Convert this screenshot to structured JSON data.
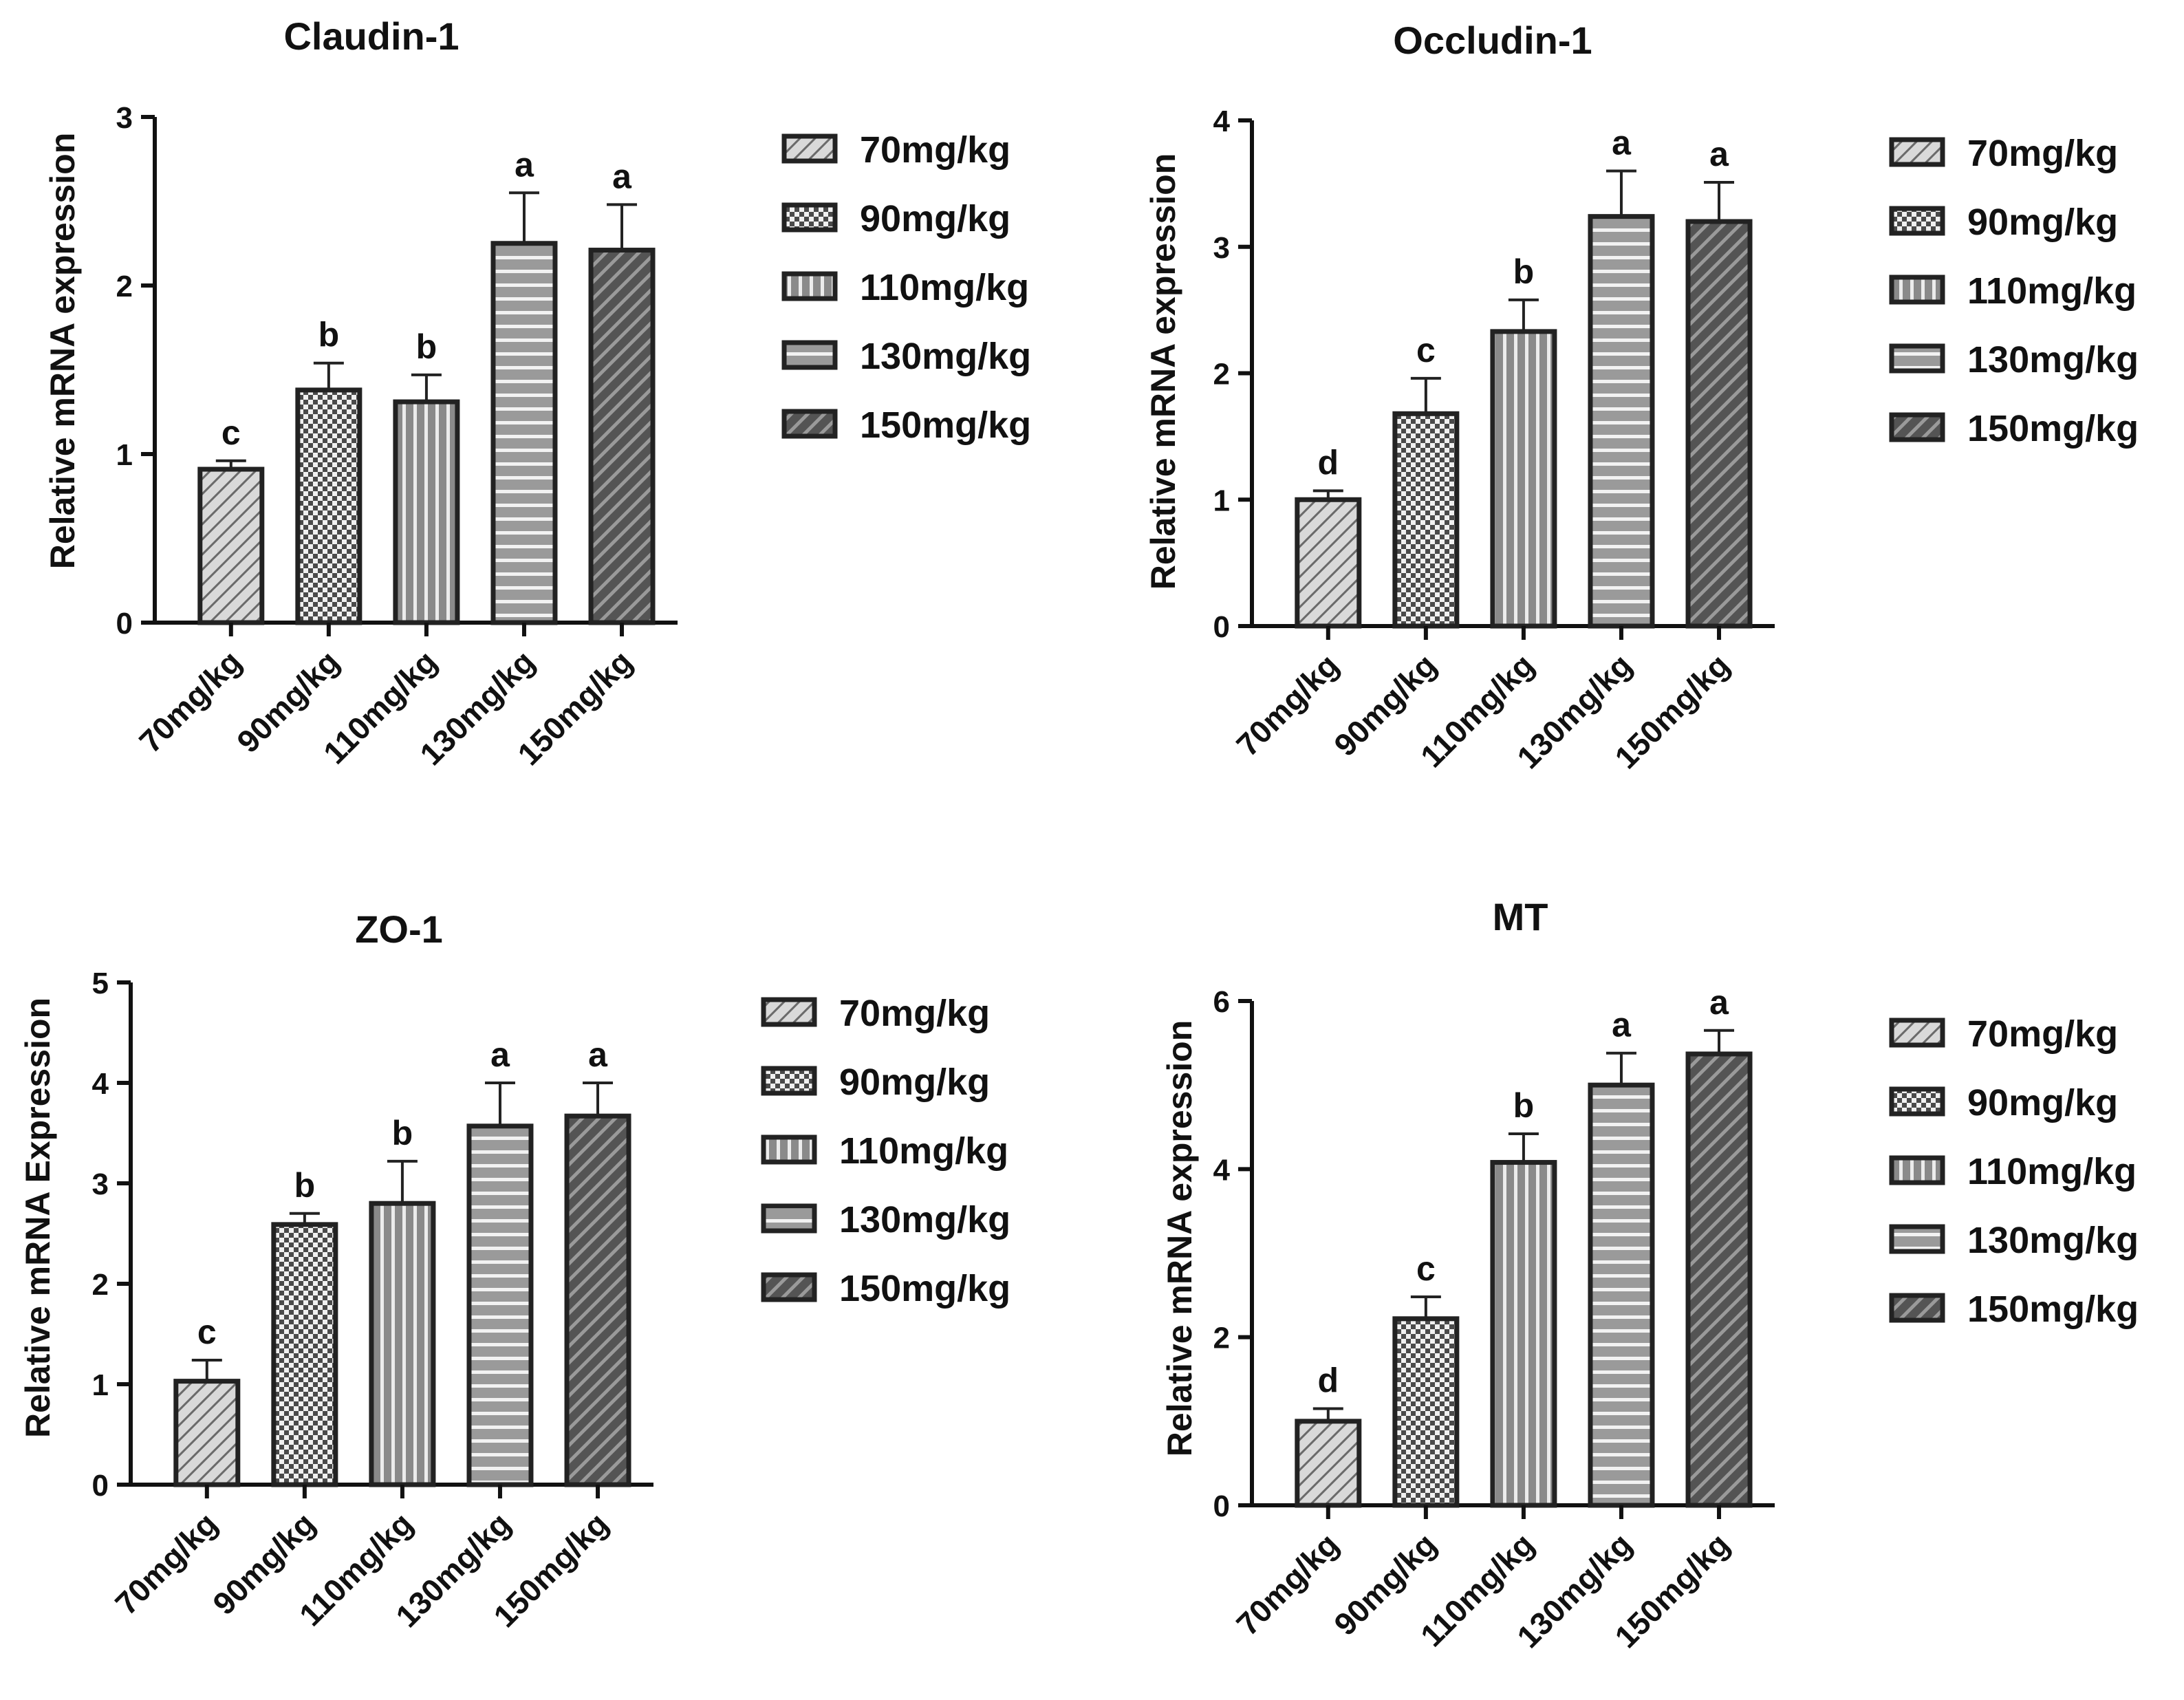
{
  "legend": [
    "70mg/kg",
    "90mg/kg",
    "110mg/kg",
    "130mg/kg",
    "150mg/kg"
  ],
  "patterns": [
    "diag-thin",
    "checker",
    "vstripe",
    "hstripe",
    "diag-thick"
  ],
  "colors": {
    "bar": "#a8a8a8",
    "stroke": "#222222",
    "light_fill": "#d6d6d6",
    "dark_fill": "#555555",
    "text": "#111111"
  },
  "chart_data": [
    {
      "type": "bar",
      "title": "Claudin-1",
      "ylabel": "Relative mRNA expression",
      "xlabel": "",
      "categories": [
        "70mg/kg",
        "90mg/kg",
        "110mg/kg",
        "130mg/kg",
        "150mg/kg"
      ],
      "values": [
        0.91,
        1.38,
        1.31,
        2.25,
        2.21
      ],
      "errors": [
        0.05,
        0.16,
        0.16,
        0.3,
        0.27
      ],
      "significance": [
        "c",
        "b",
        "b",
        "a",
        "a"
      ],
      "ylim": [
        0,
        3
      ],
      "yticks": [
        "0",
        "1",
        "2",
        "3"
      ],
      "legend_position": "right"
    },
    {
      "type": "bar",
      "title": "Occludin-1",
      "ylabel": "Relative mRNA expression",
      "xlabel": "",
      "categories": [
        "70mg/kg",
        "90mg/kg",
        "110mg/kg",
        "130mg/kg",
        "150mg/kg"
      ],
      "values": [
        1.0,
        1.68,
        2.33,
        3.24,
        3.2
      ],
      "errors": [
        0.07,
        0.28,
        0.25,
        0.36,
        0.31
      ],
      "significance": [
        "d",
        "c",
        "b",
        "a",
        "a"
      ],
      "ylim": [
        0,
        4
      ],
      "yticks": [
        "0",
        "1",
        "2",
        "3",
        "4"
      ],
      "legend_position": "right"
    },
    {
      "type": "bar",
      "title": "ZO-1",
      "ylabel": "Relative mRNA Expression",
      "xlabel": "",
      "categories": [
        "70mg/kg",
        "90mg/kg",
        "110mg/kg",
        "130mg/kg",
        "150mg/kg"
      ],
      "values": [
        1.03,
        2.59,
        2.8,
        3.57,
        3.67
      ],
      "errors": [
        0.21,
        0.11,
        0.42,
        0.43,
        0.33
      ],
      "significance": [
        "c",
        "b",
        "b",
        "a",
        "a"
      ],
      "ylim": [
        0,
        5
      ],
      "yticks": [
        "0",
        "1",
        "2",
        "3",
        "4",
        "5"
      ],
      "legend_position": "right"
    },
    {
      "type": "bar",
      "title": "MT",
      "ylabel": "Relative mRNA expression",
      "xlabel": "",
      "categories": [
        "70mg/kg",
        "90mg/kg",
        "110mg/kg",
        "130mg/kg",
        "150mg/kg"
      ],
      "values": [
        1.0,
        2.22,
        4.08,
        5.0,
        5.37
      ],
      "errors": [
        0.15,
        0.26,
        0.34,
        0.38,
        0.28
      ],
      "significance": [
        "d",
        "c",
        "b",
        "a",
        "a"
      ],
      "ylim": [
        0,
        6
      ],
      "yticks": [
        "0",
        "2",
        "4",
        "6"
      ],
      "legend_position": "right"
    }
  ]
}
